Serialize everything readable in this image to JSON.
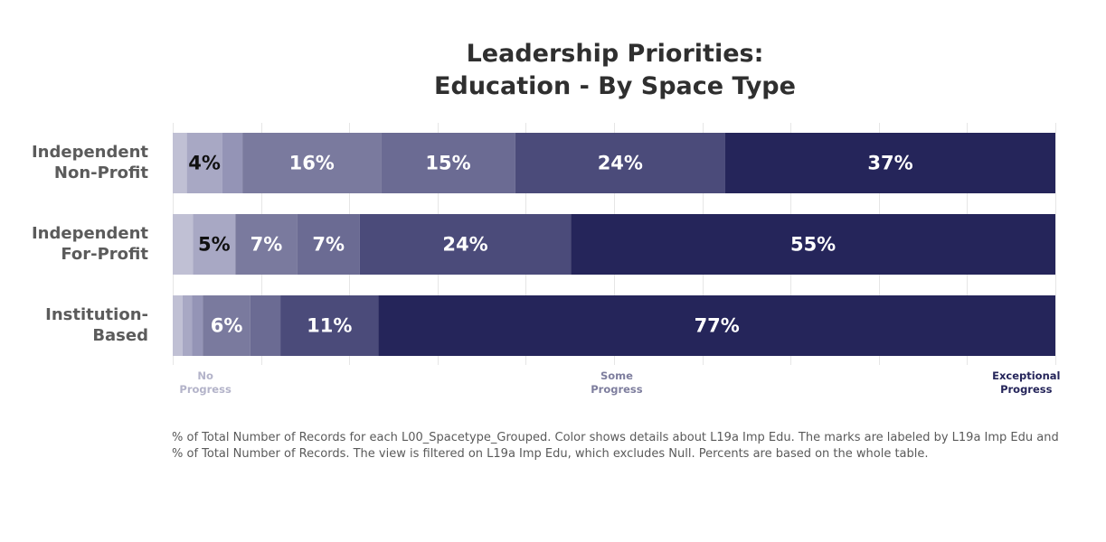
{
  "chart_data": {
    "type": "bar",
    "orientation": "horizontal",
    "stacked": true,
    "title_lines": [
      "Leadership Priorities:",
      "Education - By Space Type"
    ],
    "categories": [
      [
        "Independent",
        "Non-Profit"
      ],
      [
        "Independent",
        "For-Profit"
      ],
      [
        "Institution-",
        "Based"
      ]
    ],
    "segment_colors": [
      "#c0c0d4",
      "#a8a8c4",
      "#9494b6",
      "#7a7a9e",
      "#6b6b93",
      "#4b4b7a",
      "#25255a"
    ],
    "segment_label_colors": [
      "#111111",
      "#111111",
      "#111111",
      "#ffffff",
      "#ffffff",
      "#ffffff",
      "#ffffff"
    ],
    "rows": [
      {
        "values": [
          1.6,
          4.0,
          2.3,
          15.7,
          15.2,
          23.8,
          37.4
        ],
        "labels": [
          "",
          "4%",
          "",
          "16%",
          "15%",
          "24%",
          "37%"
        ]
      },
      {
        "values": [
          2.3,
          4.8,
          0.0,
          7.0,
          7.1,
          23.9,
          54.9
        ],
        "labels": [
          "",
          "5%",
          "",
          "7%",
          "7%",
          "24%",
          "55%"
        ]
      },
      {
        "values": [
          1.1,
          1.1,
          1.2,
          5.4,
          3.4,
          11.1,
          76.7
        ],
        "labels": [
          "",
          "",
          "",
          "6%",
          "",
          "11%",
          "77%"
        ]
      }
    ],
    "xlim": [
      0,
      100
    ],
    "gridlines": [
      0,
      10,
      20,
      30,
      40,
      50,
      60,
      70,
      80,
      90,
      100
    ],
    "grid": true,
    "axis_labels": [
      {
        "lines": [
          "No",
          "Progress"
        ],
        "at": 3.7,
        "color": "#b3b3c9"
      },
      {
        "lines": [
          "Some",
          "Progress"
        ],
        "at": 50.3,
        "color": "#7e7e9e"
      },
      {
        "lines": [
          "Exceptional",
          "Progress"
        ],
        "at": 96.7,
        "color": "#25255a"
      }
    ],
    "legend": "none"
  },
  "footnote": "% of Total Number of Records for each L00_Spacetype_Grouped.  Color shows details about L19a Imp Edu.  The marks are labeled by L19a Imp Edu and % of Total Number of Records. The view is filtered on L19a Imp Edu, which excludes Null. Percents are based on the whole table."
}
